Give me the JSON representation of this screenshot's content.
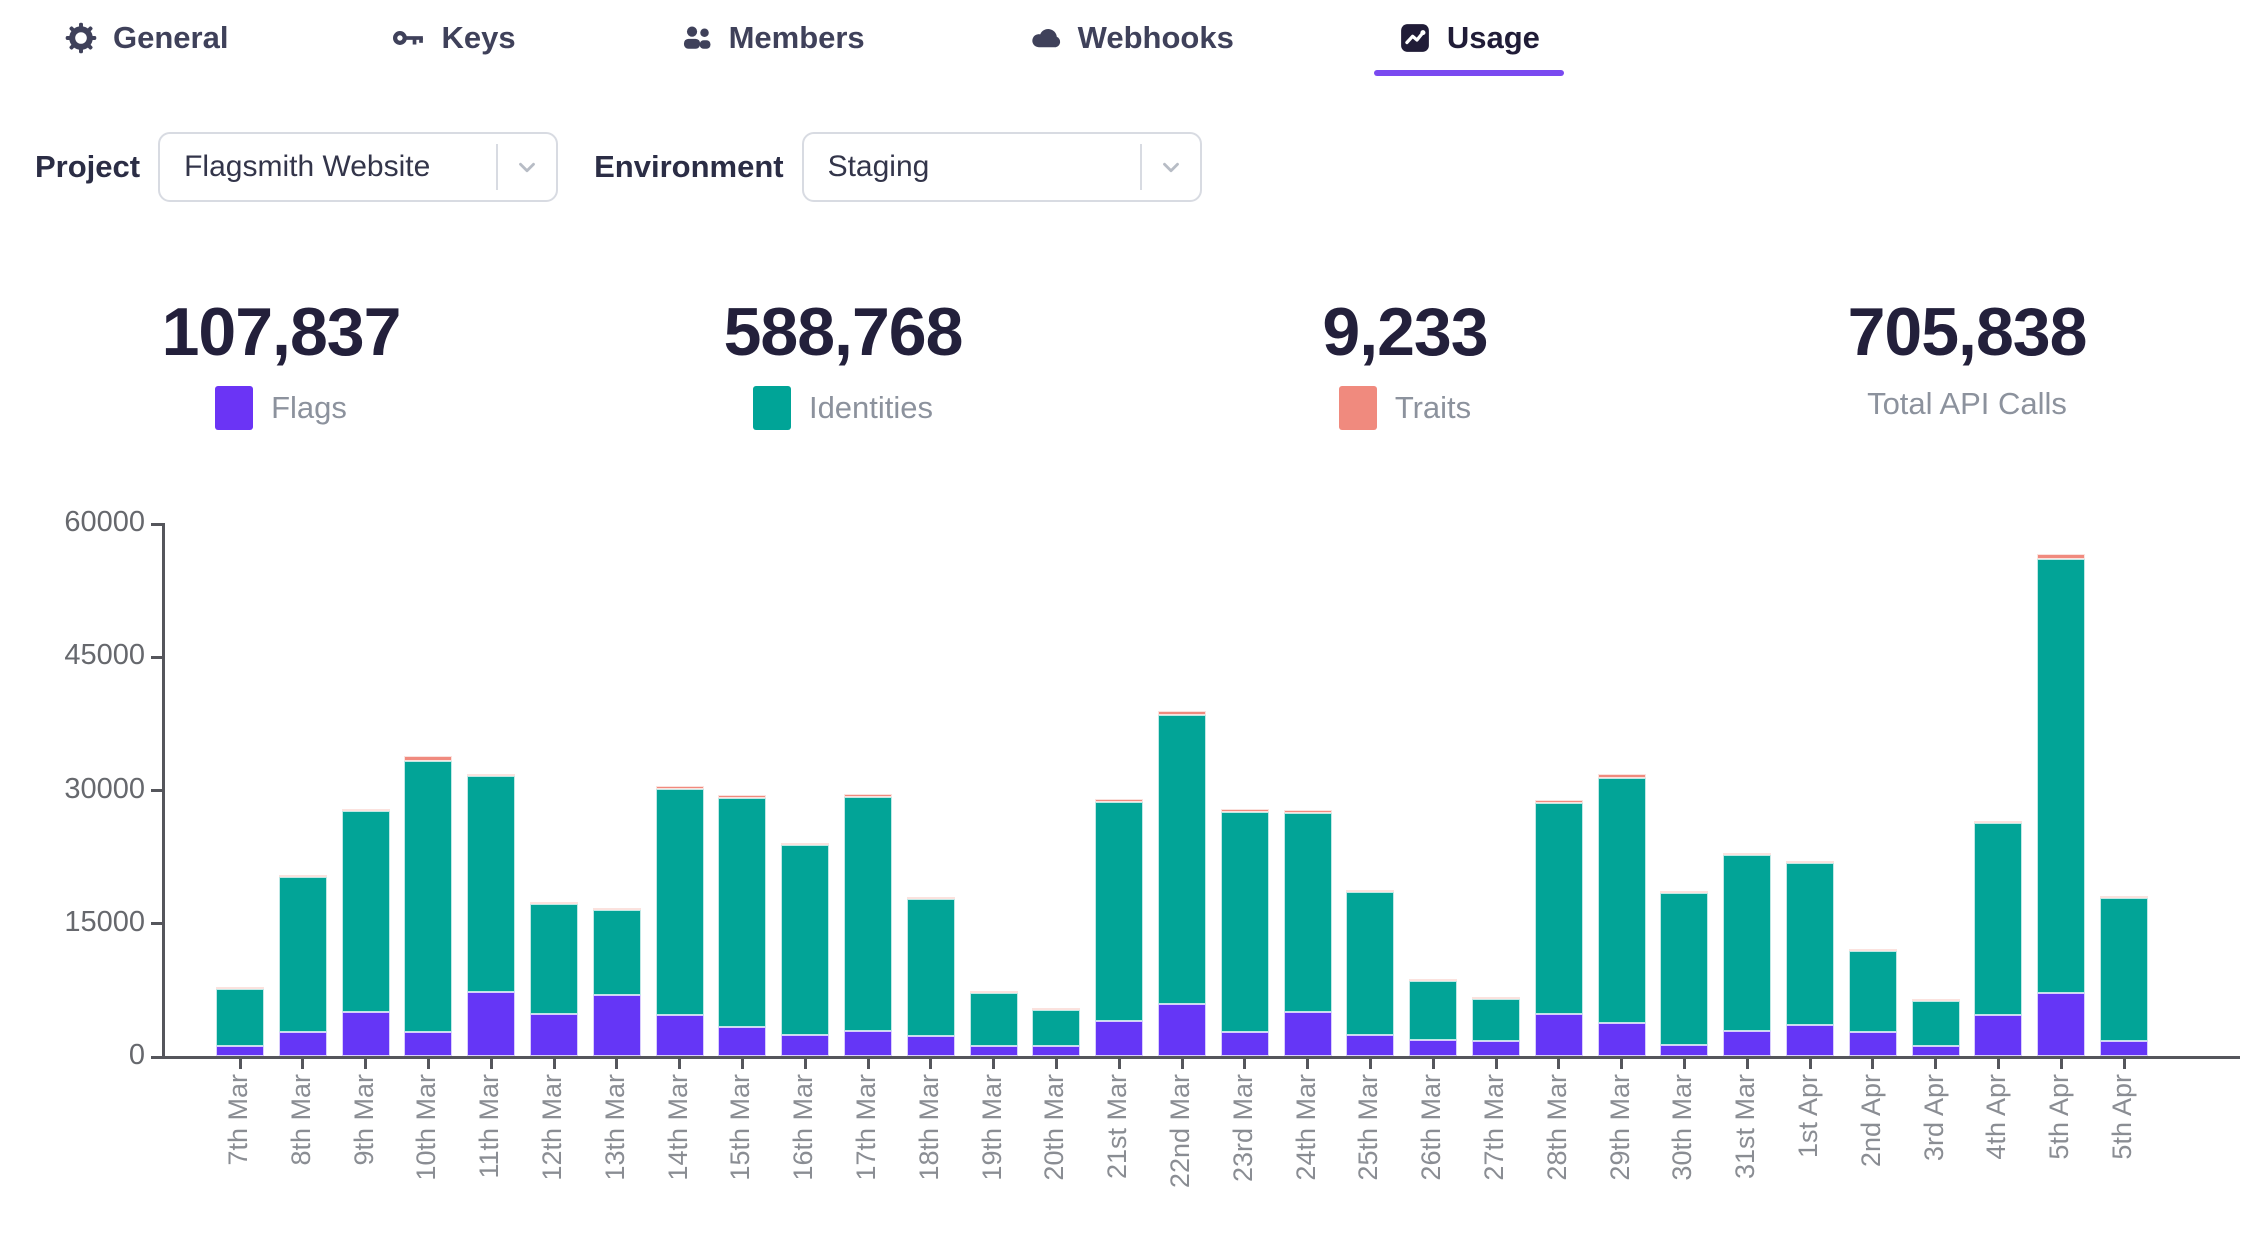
{
  "tabs": [
    {
      "label": "General",
      "icon": "gear-icon",
      "active": false
    },
    {
      "label": "Keys",
      "icon": "key-icon",
      "active": false
    },
    {
      "label": "Members",
      "icon": "members-icon",
      "active": false
    },
    {
      "label": "Webhooks",
      "icon": "cloud-icon",
      "active": false
    },
    {
      "label": "Usage",
      "icon": "chart-icon",
      "active": true
    }
  ],
  "filters": {
    "project": {
      "label": "Project",
      "value": "Flagsmith Website"
    },
    "environment": {
      "label": "Environment",
      "value": "Staging"
    }
  },
  "stats": [
    {
      "value": "107,837",
      "label": "Flags",
      "swatch": "#6b34f5"
    },
    {
      "value": "588,768",
      "label": "Identities",
      "swatch": "#00a497"
    },
    {
      "value": "9,233",
      "label": "Traits",
      "swatch": "#f08a7e"
    },
    {
      "value": "705,838",
      "label": "Total API Calls",
      "swatch": null
    }
  ],
  "colors": {
    "accent": "#7a4af0",
    "flags": "#6536f6",
    "identities": "#02a497",
    "traits": "#f08a7e",
    "axis": "#55565c"
  },
  "chart_data": {
    "type": "bar",
    "stacked": true,
    "title": "",
    "xlabel": "",
    "ylabel": "",
    "ylim": [
      0,
      60000
    ],
    "yticks": [
      0,
      15000,
      30000,
      45000,
      60000
    ],
    "grid": false,
    "legend_position": "top-stats-row",
    "categories": [
      "7th Mar",
      "8th Mar",
      "9th Mar",
      "10th Mar",
      "11th Mar",
      "12th Mar",
      "13th Mar",
      "14th Mar",
      "15th Mar",
      "16th Mar",
      "17th Mar",
      "18th Mar",
      "19th Mar",
      "20th Mar",
      "21st Mar",
      "22nd Mar",
      "23rd Mar",
      "24th Mar",
      "25th Mar",
      "26th Mar",
      "27th Mar",
      "28th Mar",
      "29th Mar",
      "30th Mar",
      "31st Mar",
      "1st Apr",
      "2nd Apr",
      "3rd Apr",
      "4th Apr",
      "5th Apr",
      "5th Apr"
    ],
    "series": [
      {
        "name": "Flags",
        "color": "#6536f6",
        "values": [
          1100,
          2700,
          5000,
          2700,
          7200,
          4700,
          6900,
          4600,
          3300,
          2400,
          2800,
          2300,
          1100,
          1100,
          3900,
          5900,
          2700,
          5000,
          2400,
          1800,
          1700,
          4700,
          3700,
          1300,
          2800,
          3500,
          2700,
          1200,
          4600,
          7100,
          1700
        ]
      },
      {
        "name": "Identities",
        "color": "#02a497",
        "values": [
          6600,
          17500,
          22600,
          30500,
          24300,
          12500,
          9600,
          25500,
          25700,
          21300,
          26400,
          15500,
          6100,
          4200,
          24700,
          32500,
          24800,
          22400,
          16100,
          6800,
          4900,
          23800,
          27600,
          17200,
          19900,
          18300,
          9200,
          5100,
          21700,
          48900,
          16200
        ]
      },
      {
        "name": "Traits",
        "color": "#f08a7e",
        "values": [
          100,
          200,
          250,
          600,
          250,
          150,
          150,
          350,
          400,
          300,
          350,
          150,
          100,
          100,
          300,
          450,
          300,
          350,
          150,
          50,
          50,
          350,
          400,
          100,
          150,
          100,
          100,
          100,
          200,
          500,
          100
        ]
      }
    ]
  }
}
